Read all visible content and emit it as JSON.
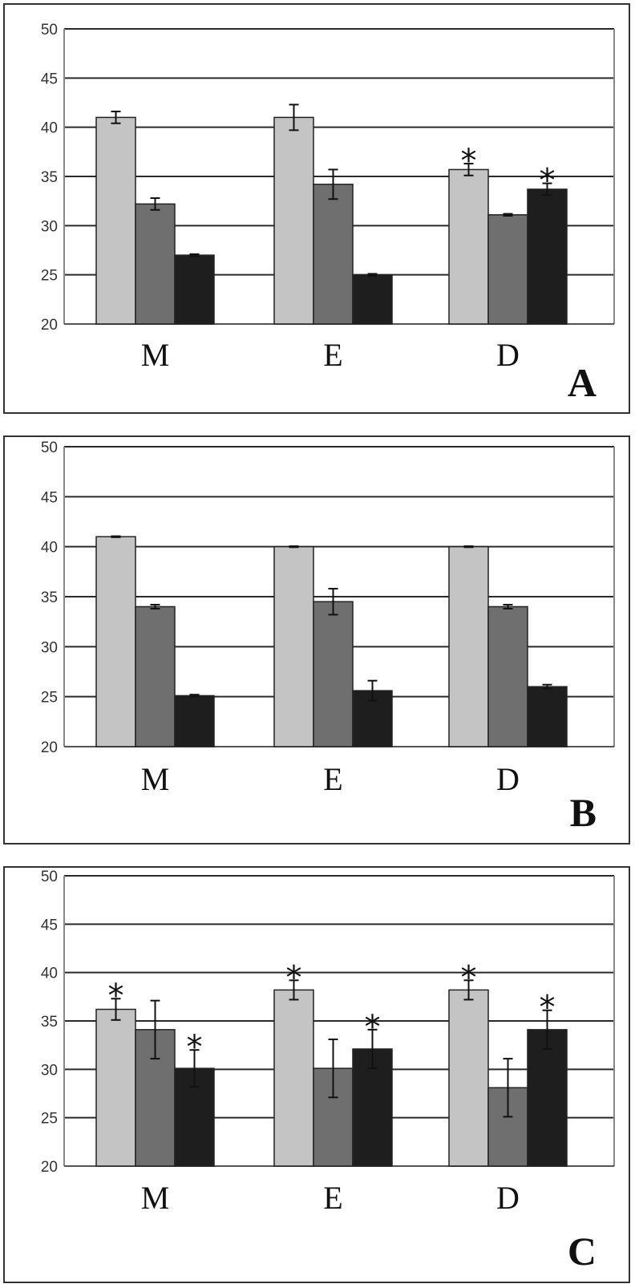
{
  "colors": {
    "series_1": "#c4c4c4",
    "series_2": "#6f6f6f",
    "series_3": "#1e1e1e",
    "gridline": "#2a2a2a",
    "error_bar": "#111111"
  },
  "chart_data": [
    {
      "type": "bar",
      "panel_label": "A",
      "categories": [
        "M",
        "E",
        "D"
      ],
      "ylim": [
        20,
        50
      ],
      "yticks": [
        20,
        25,
        30,
        35,
        40,
        45,
        50
      ],
      "grid": true,
      "series": [
        {
          "values": [
            41,
            41,
            35.7
          ],
          "errors": [
            0.6,
            1.3,
            0.6
          ],
          "significant": [
            false,
            false,
            true
          ]
        },
        {
          "values": [
            32.2,
            34.2,
            31.1
          ],
          "errors": [
            0.6,
            1.5,
            0.1
          ],
          "significant": [
            false,
            false,
            false
          ]
        },
        {
          "values": [
            27,
            25,
            33.7
          ],
          "errors": [
            0.1,
            0.1,
            0.6
          ],
          "significant": [
            false,
            false,
            true
          ]
        }
      ]
    },
    {
      "type": "bar",
      "panel_label": "B",
      "categories": [
        "M",
        "E",
        "D"
      ],
      "ylim": [
        20,
        50
      ],
      "yticks": [
        20,
        25,
        30,
        35,
        40,
        45,
        50
      ],
      "grid": true,
      "series": [
        {
          "values": [
            41,
            40,
            40
          ],
          "errors": [
            0.05,
            0.05,
            0.05
          ],
          "significant": [
            false,
            false,
            false
          ]
        },
        {
          "values": [
            34,
            34.5,
            34
          ],
          "errors": [
            0.2,
            1.3,
            0.2
          ],
          "significant": [
            false,
            false,
            false
          ]
        },
        {
          "values": [
            25.1,
            25.6,
            26
          ],
          "errors": [
            0.1,
            1.0,
            0.2
          ],
          "significant": [
            false,
            false,
            false
          ]
        }
      ]
    },
    {
      "type": "bar",
      "panel_label": "C",
      "categories": [
        "M",
        "E",
        "D"
      ],
      "ylim": [
        20,
        50
      ],
      "yticks": [
        20,
        25,
        30,
        35,
        40,
        45,
        50
      ],
      "grid": true,
      "series": [
        {
          "values": [
            36.2,
            38.2,
            38.2
          ],
          "errors": [
            1.1,
            1.0,
            1.0
          ],
          "significant": [
            true,
            true,
            true
          ]
        },
        {
          "values": [
            34.1,
            30.1,
            28.1
          ],
          "errors": [
            3.0,
            3.0,
            3.0
          ],
          "significant": [
            false,
            false,
            false
          ]
        },
        {
          "values": [
            30.1,
            32.1,
            34.1
          ],
          "errors": [
            1.9,
            2.0,
            2.0
          ],
          "significant": [
            true,
            true,
            true
          ]
        }
      ]
    }
  ]
}
